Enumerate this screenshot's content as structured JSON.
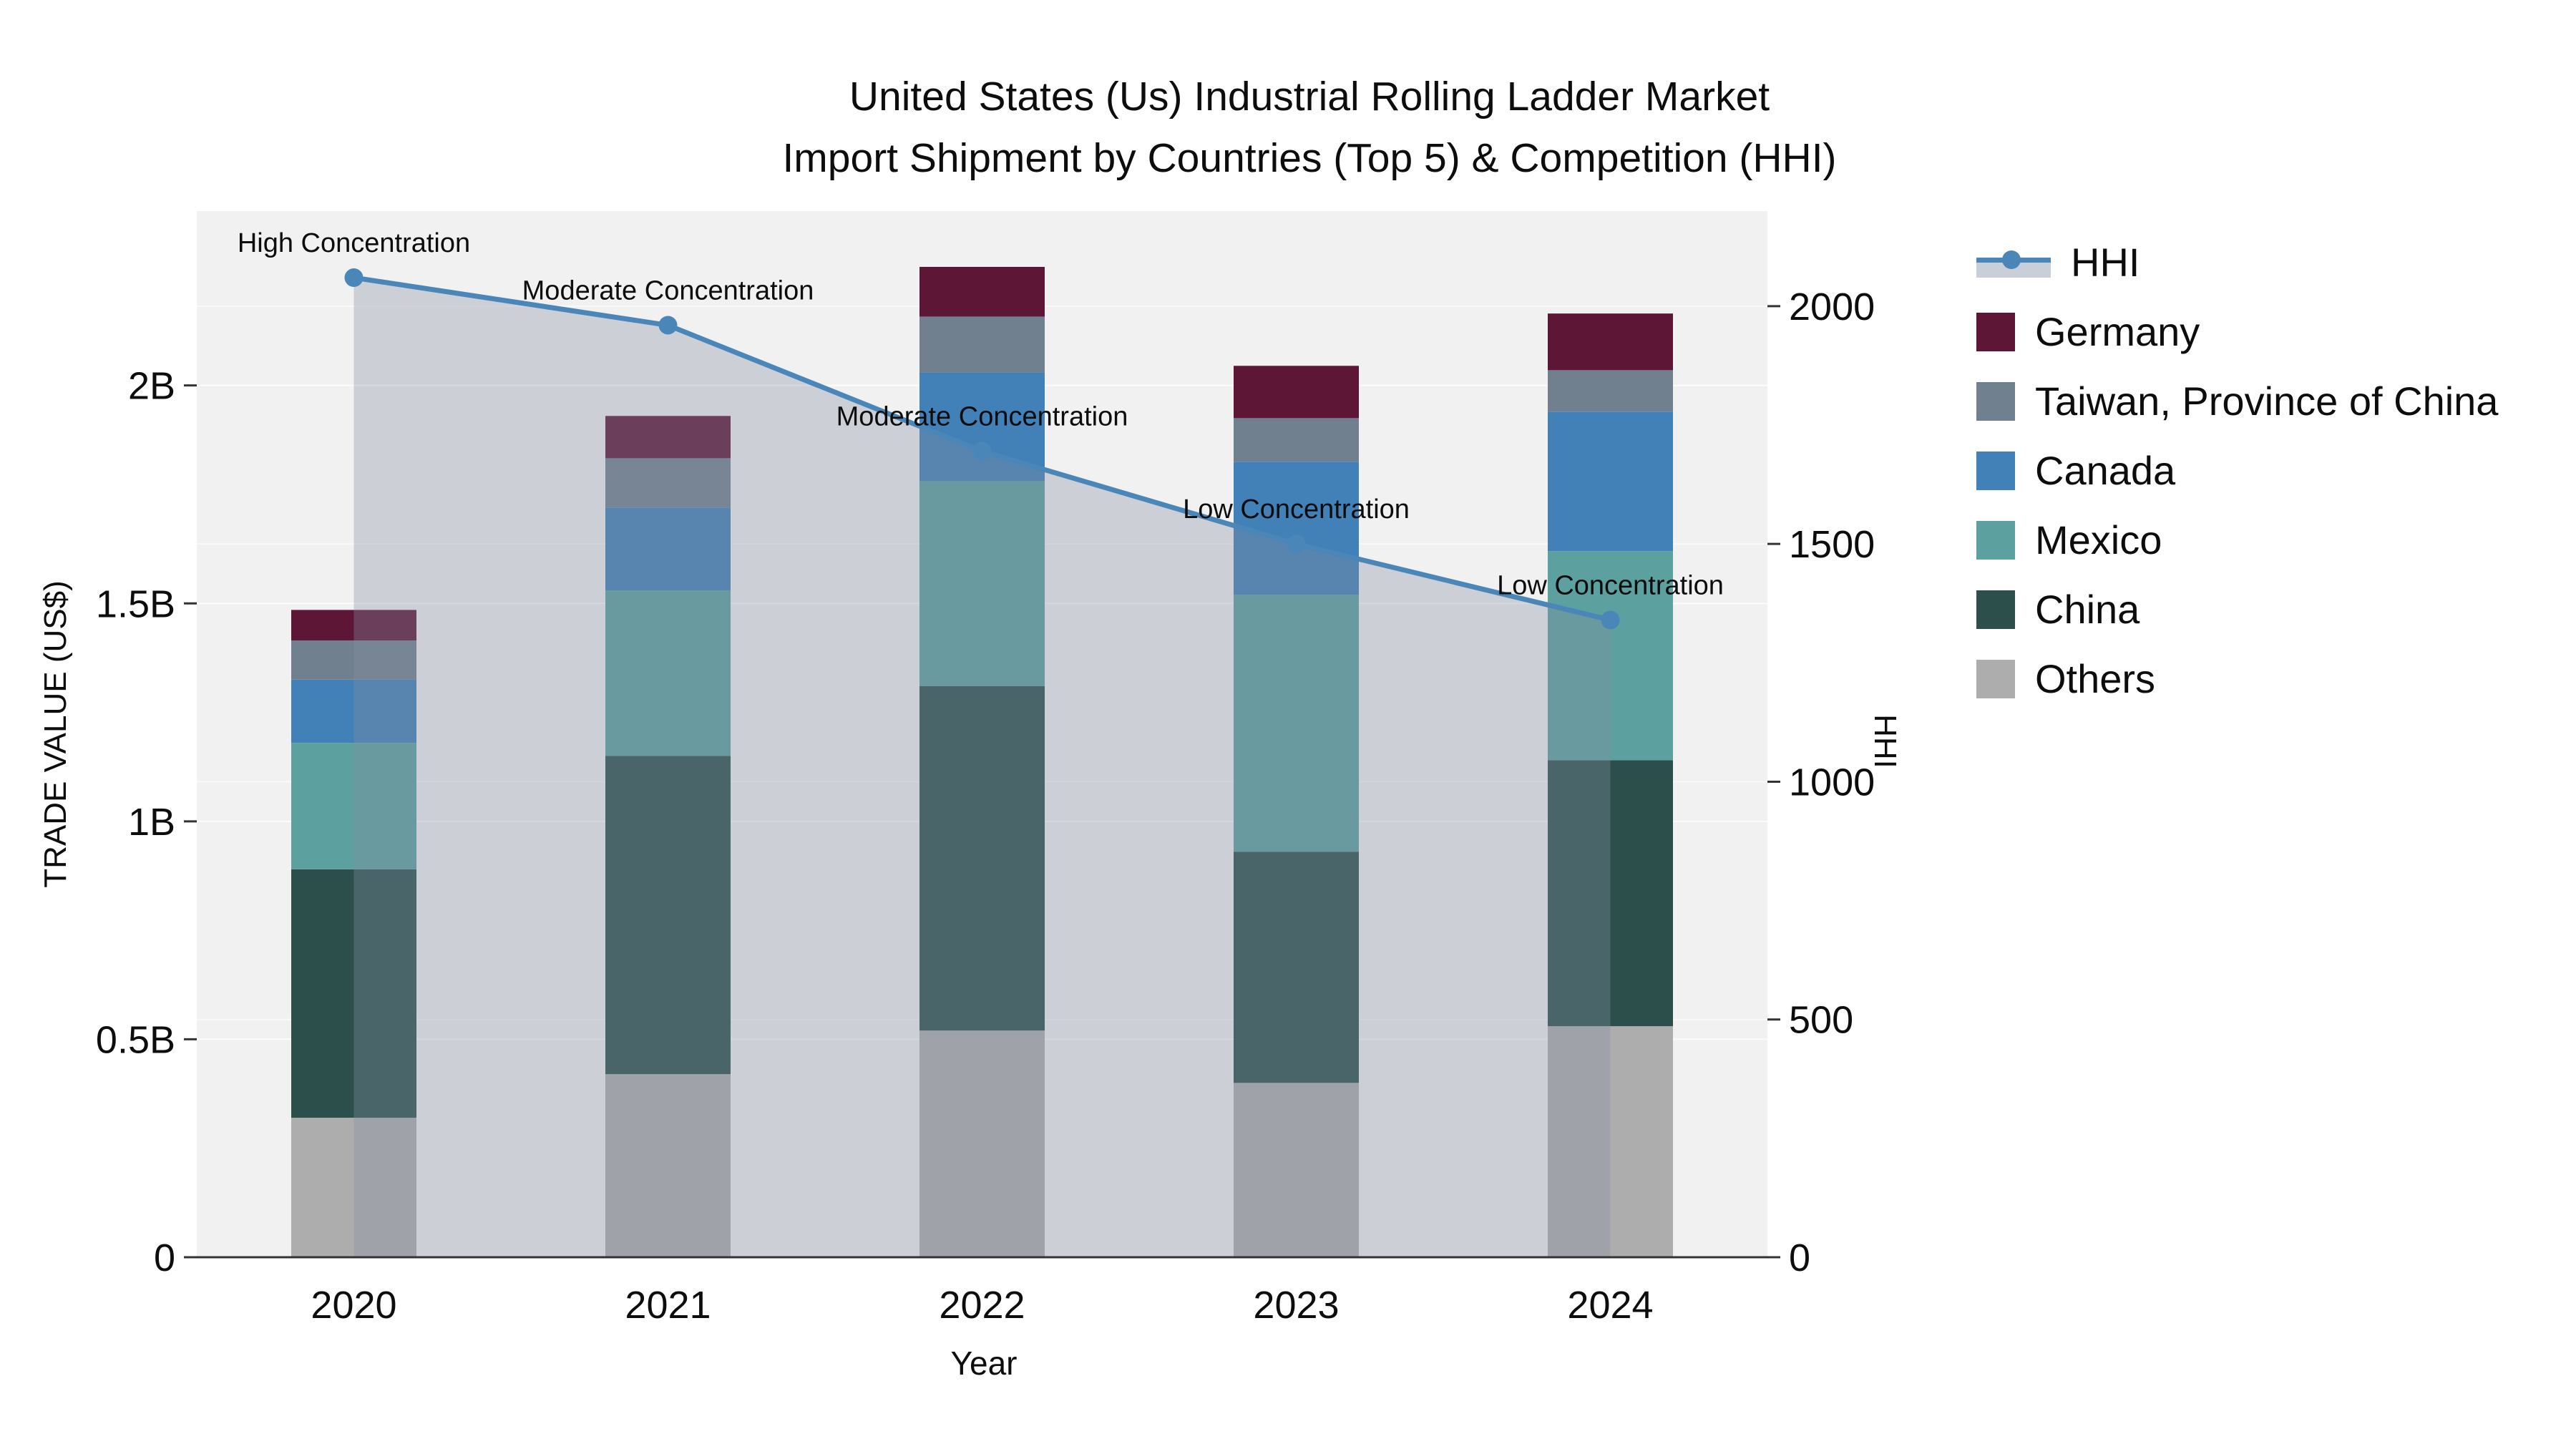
{
  "chart_data": {
    "type": "bar",
    "subtype": "stacked-bar-with-line",
    "title_line1": "United States (Us) Industrial Rolling Ladder Market",
    "title_line2": "Import Shipment by Countries (Top 5) & Competition (HHI)",
    "xlabel": "Year",
    "ylabel_left": "TRADE VALUE (US$)",
    "ylabel_right": "HHI",
    "categories": [
      "2020",
      "2021",
      "2022",
      "2023",
      "2024"
    ],
    "series": [
      {
        "name": "Others",
        "color": "#adadad",
        "values_billions": [
          0.32,
          0.42,
          0.52,
          0.4,
          0.53
        ]
      },
      {
        "name": "China",
        "color": "#2d4f4c",
        "values_billions": [
          0.57,
          0.73,
          0.79,
          0.53,
          0.61
        ]
      },
      {
        "name": "Mexico",
        "color": "#5ca0a0",
        "values_billions": [
          0.29,
          0.38,
          0.47,
          0.59,
          0.48
        ]
      },
      {
        "name": "Canada",
        "color": "#4280b8",
        "values_billions": [
          0.145,
          0.19,
          0.25,
          0.305,
          0.32
        ]
      },
      {
        "name": "Taiwan, Province of China",
        "color": "#71808f",
        "values_billions": [
          0.09,
          0.113,
          0.128,
          0.1,
          0.095
        ]
      },
      {
        "name": "Germany",
        "color": "#5e1637",
        "values_billions": [
          0.07,
          0.097,
          0.114,
          0.12,
          0.13
        ]
      }
    ],
    "hhi": {
      "name": "HHI",
      "line_color": "#4a86b8",
      "area_fill": "rgba(132,143,162,0.34)",
      "values": [
        2060,
        1960,
        1695,
        1500,
        1340
      ]
    },
    "annotations": [
      {
        "x_index": 0,
        "text": "High Concentration"
      },
      {
        "x_index": 1,
        "text": "Moderate Concentration"
      },
      {
        "x_index": 2,
        "text": "Moderate Concentration"
      },
      {
        "x_index": 3,
        "text": "Low Concentration"
      },
      {
        "x_index": 4,
        "text": "Low Concentration"
      }
    ],
    "legend_order": [
      "HHI",
      "Germany",
      "Taiwan, Province of China",
      "Canada",
      "Mexico",
      "China",
      "Others"
    ],
    "y_left": {
      "tick_labels": [
        "0",
        "0.5B",
        "1B",
        "1.5B",
        "2B"
      ],
      "tick_values_billions": [
        0,
        0.5,
        1,
        1.5,
        2
      ],
      "range_billions": [
        0,
        2.4
      ]
    },
    "y_right": {
      "tick_labels": [
        "0",
        "500",
        "1000",
        "1500",
        "2000"
      ],
      "tick_values": [
        0,
        500,
        1000,
        1500,
        2000
      ],
      "range": [
        0,
        2200
      ]
    },
    "legend_position": "right",
    "grid": "on"
  },
  "style_colors": {
    "plot_bg": "#f1f1f2",
    "gridline": "#ffffff",
    "axis_line": "#333333",
    "text": "#0d0d0d"
  }
}
